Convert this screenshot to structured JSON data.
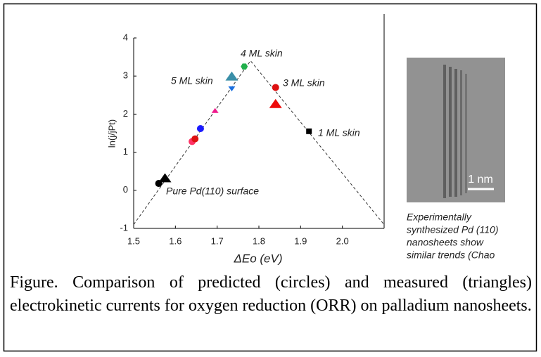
{
  "chart_data": {
    "type": "scatter",
    "xlabel": "ΔEo (eV)",
    "ylabel": "ln(j/jPt)",
    "xlim": [
      1.5,
      2.1
    ],
    "ylim": [
      -1,
      4
    ],
    "xticks": [
      1.5,
      1.6,
      1.7,
      1.8,
      1.9,
      {
        "value": 2,
        "label": "2.0"
      }
    ],
    "yticks": [
      -1,
      0,
      1,
      2,
      3,
      4
    ],
    "series": [
      {
        "color": "#333333",
        "line": "dashed",
        "x": [
          1.5,
          1.78,
          2.1
        ],
        "values": [
          -0.9,
          3.4,
          -0.9
        ]
      },
      {
        "color": "#000000",
        "marker": "circle",
        "x": [
          1.56
        ],
        "values": [
          0.18
        ]
      },
      {
        "color": "#000000",
        "marker": "triangle-large",
        "x": [
          1.575
        ],
        "values": [
          0.3
        ]
      },
      {
        "color": "#ff3366",
        "marker": "circle",
        "x": [
          1.64
        ],
        "values": [
          1.28
        ]
      },
      {
        "color": "#dd1111",
        "marker": "circle",
        "x": [
          1.647
        ],
        "values": [
          1.35
        ]
      },
      {
        "color": "#1a1aff",
        "marker": "circle",
        "x": [
          1.66
        ],
        "values": [
          1.62
        ]
      },
      {
        "color": "#ee1a8c",
        "marker": "triangle",
        "x": [
          1.695
        ],
        "values": [
          2.08
        ]
      },
      {
        "color": "#1a6fe0",
        "marker": "triangle-down",
        "x": [
          1.735
        ],
        "values": [
          2.68
        ]
      },
      {
        "color": "#3a8fa8",
        "marker": "triangle-large",
        "x": [
          1.735
        ],
        "values": [
          2.97
        ]
      },
      {
        "color": "#22b04c",
        "marker": "hexagon",
        "x": [
          1.765
        ],
        "values": [
          3.25
        ]
      },
      {
        "color": "#dd1111",
        "marker": "circle",
        "x": [
          1.84
        ],
        "values": [
          2.7
        ]
      },
      {
        "color": "#ee0a0a",
        "marker": "triangle-large",
        "x": [
          1.84
        ],
        "values": [
          2.25
        ]
      },
      {
        "color": "#000000",
        "marker": "square",
        "x": [
          1.92
        ],
        "values": [
          1.55
        ]
      }
    ],
    "annotations": [
      "4 ML skin",
      "5 ML skin",
      "3 ML skin",
      "1 ML skin",
      "Pure Pd(110) surface"
    ]
  },
  "image": {
    "scale_label": "1 nm"
  },
  "image_caption": {
    "lines": [
      "Experimentally",
      "synthesized Pd (110)",
      "nanosheets show",
      "similar trends (Chao"
    ]
  },
  "caption": "Figure.  Comparison of predicted (circles) and measured (triangles) electrokinetic currents for oxygen reduction (ORR) on palladium nanosheets."
}
